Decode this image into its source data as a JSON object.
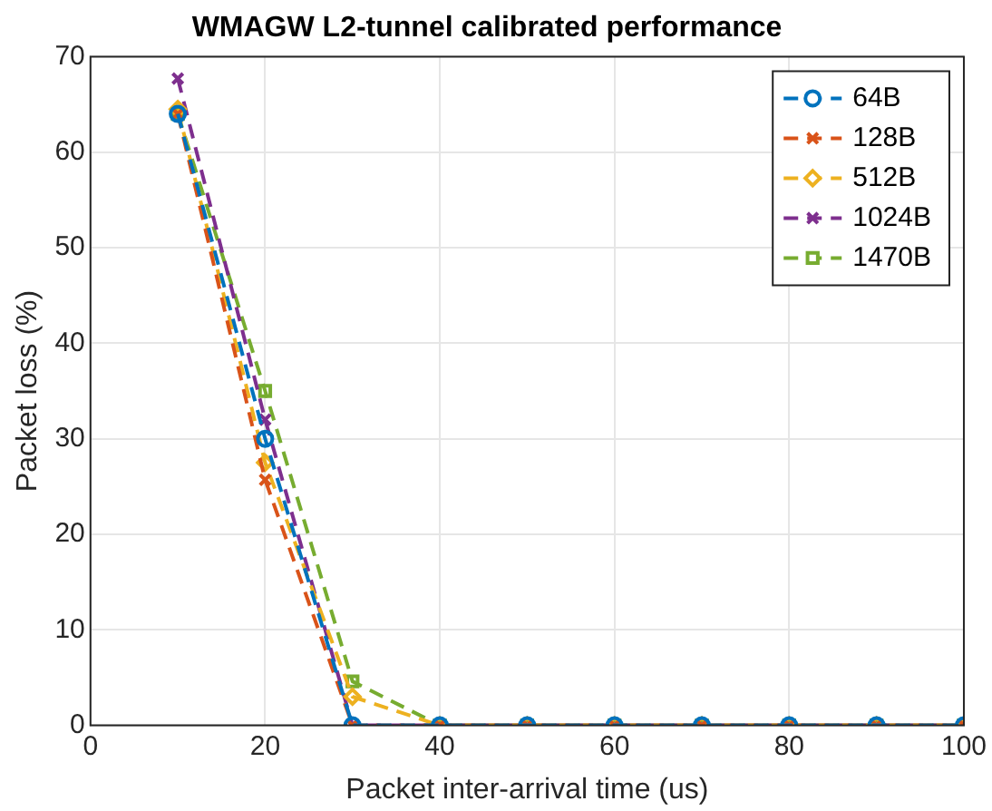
{
  "chart_data": {
    "type": "line",
    "title": "WMAGW L2-tunnel calibrated performance",
    "xlabel": "Packet inter-arrival time (us)",
    "ylabel": "Packet loss (%)",
    "x": [
      10,
      20,
      30,
      40,
      50,
      60,
      70,
      80,
      90,
      100
    ],
    "series": [
      {
        "name": "64B",
        "color": "#0072bd",
        "marker": "circle",
        "values": [
          64,
          30,
          0,
          0,
          0,
          0,
          0,
          0,
          0,
          0
        ]
      },
      {
        "name": "128B",
        "color": "#d95319",
        "marker": "cross",
        "values": [
          64,
          25.7,
          0,
          0,
          0,
          0,
          0,
          0,
          0,
          0
        ]
      },
      {
        "name": "512B",
        "color": "#edb120",
        "marker": "diamond",
        "values": [
          64.5,
          27.5,
          3,
          0,
          0,
          0,
          0,
          0,
          0,
          0
        ]
      },
      {
        "name": "1024B",
        "color": "#7e2f8e",
        "marker": "cross",
        "values": [
          67.7,
          32,
          0,
          0,
          0,
          0,
          0,
          0,
          0,
          0
        ]
      },
      {
        "name": "1470B",
        "color": "#77ac30",
        "marker": "square",
        "values": [
          64,
          35,
          4.6,
          0,
          0,
          0,
          0,
          0,
          0,
          0
        ]
      }
    ],
    "xlim": [
      0,
      100
    ],
    "xticks": [
      0,
      20,
      40,
      60,
      80,
      100
    ],
    "ylim": [
      0,
      70
    ],
    "yticks": [
      0,
      10,
      20,
      30,
      40,
      50,
      60,
      70
    ],
    "grid": true,
    "legend": "top right",
    "line_style": "dashed"
  }
}
